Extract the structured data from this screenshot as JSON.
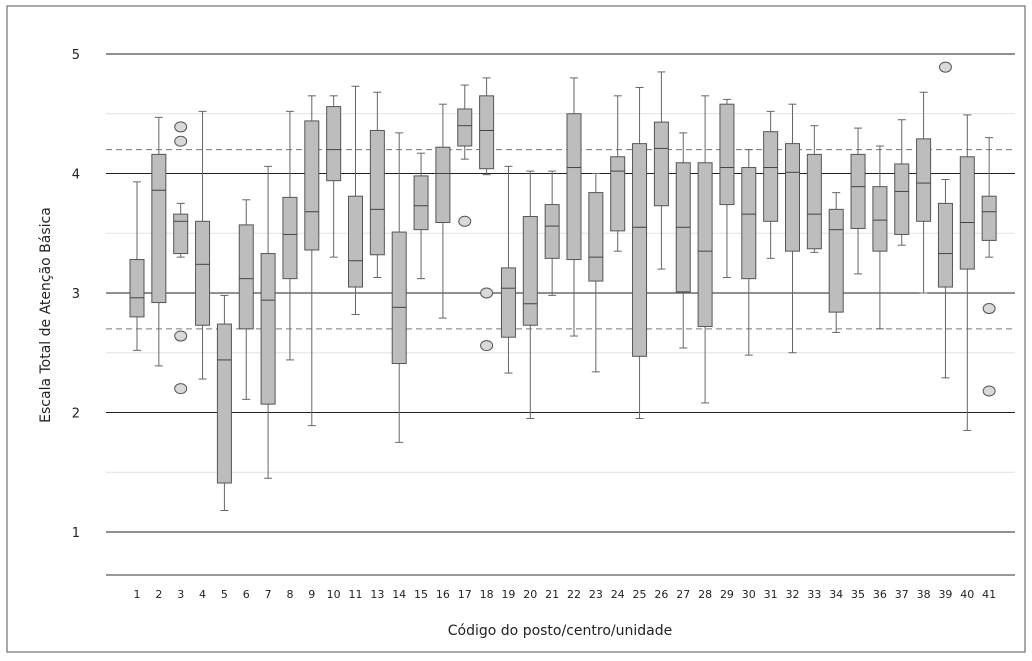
{
  "chart_data": {
    "type": "box",
    "title": "",
    "xlabel": "Código do posto/centro/unidade",
    "ylabel": "Escala Total de Atenção Básica",
    "ylim": [
      0.7,
      5.3
    ],
    "yticks": [
      1,
      2,
      3,
      4,
      5
    ],
    "reference_lines": [
      4.2,
      2.7
    ],
    "grid": "horizontal",
    "categories": [
      "1",
      "2",
      "3",
      "4",
      "5",
      "6",
      "7",
      "8",
      "9",
      "10",
      "11",
      "13",
      "14",
      "15",
      "16",
      "17",
      "18",
      "19",
      "20",
      "21",
      "22",
      "23",
      "24",
      "25",
      "26",
      "27",
      "28",
      "29",
      "30",
      "31",
      "32",
      "33",
      "34",
      "35",
      "36",
      "37",
      "38",
      "39",
      "40",
      "41"
    ],
    "boxes": [
      {
        "label": "1",
        "low": 2.52,
        "q1": 2.8,
        "median": 2.96,
        "q3": 3.28,
        "high": 3.93,
        "outliers": []
      },
      {
        "label": "2",
        "low": 2.39,
        "q1": 2.92,
        "median": 3.86,
        "q3": 4.16,
        "high": 4.47,
        "outliers": []
      },
      {
        "label": "3",
        "low": 3.3,
        "q1": 3.33,
        "median": 3.6,
        "q3": 3.66,
        "high": 3.75,
        "outliers": [
          4.39,
          4.27,
          2.64,
          2.2
        ]
      },
      {
        "label": "4",
        "low": 2.28,
        "q1": 2.73,
        "median": 3.24,
        "q3": 3.6,
        "high": 4.52,
        "outliers": []
      },
      {
        "label": "5",
        "low": 1.18,
        "q1": 1.41,
        "median": 2.44,
        "q3": 2.74,
        "high": 2.98,
        "outliers": []
      },
      {
        "label": "6",
        "low": 2.11,
        "q1": 2.7,
        "median": 3.12,
        "q3": 3.57,
        "high": 3.78,
        "outliers": []
      },
      {
        "label": "7",
        "low": 1.45,
        "q1": 2.07,
        "median": 2.94,
        "q3": 3.33,
        "high": 4.06,
        "outliers": []
      },
      {
        "label": "8",
        "low": 2.44,
        "q1": 3.12,
        "median": 3.49,
        "q3": 3.8,
        "high": 4.52,
        "outliers": []
      },
      {
        "label": "9",
        "low": 1.89,
        "q1": 3.36,
        "median": 3.68,
        "q3": 4.44,
        "high": 4.65,
        "outliers": []
      },
      {
        "label": "10",
        "low": 3.3,
        "q1": 3.94,
        "median": 4.2,
        "q3": 4.56,
        "high": 4.65,
        "outliers": []
      },
      {
        "label": "11",
        "low": 2.82,
        "q1": 3.05,
        "median": 3.27,
        "q3": 3.81,
        "high": 4.73,
        "outliers": []
      },
      {
        "label": "13",
        "low": 3.13,
        "q1": 3.32,
        "median": 3.7,
        "q3": 4.36,
        "high": 4.68,
        "outliers": []
      },
      {
        "label": "14",
        "low": 1.75,
        "q1": 2.41,
        "median": 2.88,
        "q3": 3.51,
        "high": 4.34,
        "outliers": []
      },
      {
        "label": "15",
        "low": 3.12,
        "q1": 3.53,
        "median": 3.73,
        "q3": 3.98,
        "high": 4.17,
        "outliers": []
      },
      {
        "label": "16",
        "low": 2.79,
        "q1": 3.59,
        "median": 4.0,
        "q3": 4.22,
        "high": 4.58,
        "outliers": []
      },
      {
        "label": "17",
        "low": 4.12,
        "q1": 4.23,
        "median": 4.4,
        "q3": 4.54,
        "high": 4.74,
        "outliers": [
          3.6
        ]
      },
      {
        "label": "18",
        "low": 3.99,
        "q1": 4.04,
        "median": 4.36,
        "q3": 4.65,
        "high": 4.8,
        "outliers": [
          3.0,
          2.56
        ]
      },
      {
        "label": "19",
        "low": 2.33,
        "q1": 2.63,
        "median": 3.04,
        "q3": 3.21,
        "high": 4.06,
        "outliers": []
      },
      {
        "label": "20",
        "low": 1.95,
        "q1": 2.73,
        "median": 2.91,
        "q3": 3.64,
        "high": 4.02,
        "outliers": []
      },
      {
        "label": "21",
        "low": 2.98,
        "q1": 3.29,
        "median": 3.56,
        "q3": 3.74,
        "high": 4.02,
        "outliers": []
      },
      {
        "label": "22",
        "low": 2.64,
        "q1": 3.28,
        "median": 4.05,
        "q3": 4.5,
        "high": 4.8,
        "outliers": []
      },
      {
        "label": "23",
        "low": 2.34,
        "q1": 3.1,
        "median": 3.3,
        "q3": 3.84,
        "high": 4.0,
        "outliers": []
      },
      {
        "label": "24",
        "low": 3.35,
        "q1": 3.52,
        "median": 4.02,
        "q3": 4.14,
        "high": 4.65,
        "outliers": []
      },
      {
        "label": "25",
        "low": 1.95,
        "q1": 2.47,
        "median": 3.55,
        "q3": 4.25,
        "high": 4.72,
        "outliers": []
      },
      {
        "label": "26",
        "low": 3.2,
        "q1": 3.73,
        "median": 4.21,
        "q3": 4.43,
        "high": 4.85,
        "outliers": []
      },
      {
        "label": "27",
        "low": 2.54,
        "q1": 3.01,
        "median": 3.55,
        "q3": 4.09,
        "high": 4.34,
        "outliers": []
      },
      {
        "label": "28",
        "low": 2.08,
        "q1": 2.72,
        "median": 3.35,
        "q3": 4.09,
        "high": 4.65,
        "outliers": []
      },
      {
        "label": "29",
        "low": 3.13,
        "q1": 3.74,
        "median": 4.05,
        "q3": 4.58,
        "high": 4.62,
        "outliers": []
      },
      {
        "label": "30",
        "low": 2.48,
        "q1": 3.12,
        "median": 3.66,
        "q3": 4.05,
        "high": 4.2,
        "outliers": []
      },
      {
        "label": "31",
        "low": 3.29,
        "q1": 3.6,
        "median": 4.05,
        "q3": 4.35,
        "high": 4.52,
        "outliers": []
      },
      {
        "label": "32",
        "low": 2.5,
        "q1": 3.35,
        "median": 4.01,
        "q3": 4.25,
        "high": 4.58,
        "outliers": []
      },
      {
        "label": "33",
        "low": 3.34,
        "q1": 3.37,
        "median": 3.66,
        "q3": 4.16,
        "high": 4.4,
        "outliers": []
      },
      {
        "label": "34",
        "low": 2.67,
        "q1": 2.84,
        "median": 3.53,
        "q3": 3.7,
        "high": 3.84,
        "outliers": []
      },
      {
        "label": "35",
        "low": 3.16,
        "q1": 3.54,
        "median": 3.89,
        "q3": 4.16,
        "high": 4.38,
        "outliers": []
      },
      {
        "label": "36",
        "low": 2.7,
        "q1": 3.35,
        "median": 3.61,
        "q3": 3.89,
        "high": 4.23,
        "outliers": []
      },
      {
        "label": "37",
        "low": 3.4,
        "q1": 3.49,
        "median": 3.85,
        "q3": 4.08,
        "high": 4.45,
        "outliers": []
      },
      {
        "label": "38",
        "low": 3.0,
        "q1": 3.6,
        "median": 3.92,
        "q3": 4.29,
        "high": 4.68,
        "outliers": []
      },
      {
        "label": "39",
        "low": 2.29,
        "q1": 3.05,
        "median": 3.33,
        "q3": 3.75,
        "high": 3.95,
        "outliers": [
          4.89
        ]
      },
      {
        "label": "40",
        "low": 1.85,
        "q1": 3.2,
        "median": 3.59,
        "q3": 4.14,
        "high": 4.49,
        "outliers": []
      },
      {
        "label": "41",
        "low": 3.3,
        "q1": 3.44,
        "median": 3.68,
        "q3": 3.81,
        "high": 4.3,
        "outliers": [
          2.87,
          2.18
        ]
      }
    ]
  }
}
